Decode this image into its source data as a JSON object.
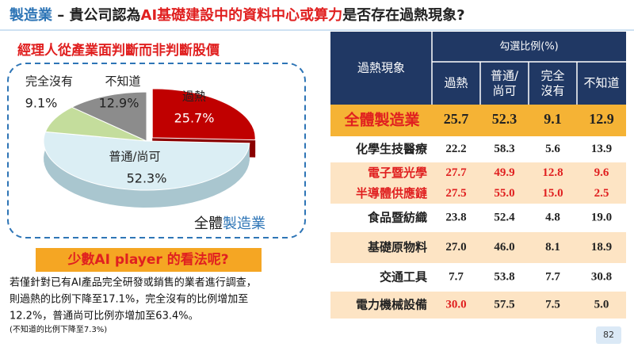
{
  "header": {
    "title_parts": [
      {
        "text": "製造業",
        "color": "#2e75b6"
      },
      {
        "text": " – 貴公司認為",
        "color": "#222222"
      },
      {
        "text": "AI基礎建設中的資料中心或算力",
        "color": "#e02020"
      },
      {
        "text": "是否存在過熱現象?",
        "color": "#222222"
      }
    ]
  },
  "subtitle": "經理人從產業面判斷而非判斷股價",
  "chart_data": {
    "type": "pie",
    "label_parts": [
      {
        "text": "全體",
        "color": "#222222"
      },
      {
        "text": "製造業",
        "color": "#2e75b6"
      }
    ],
    "categories": [
      "過熱",
      "普通/尚可",
      "完全沒有",
      "不知道"
    ],
    "values": [
      25.7,
      52.3,
      9.1,
      12.9
    ],
    "value_labels": [
      "25.7%",
      "52.3%",
      "9.1%",
      "12.9%"
    ],
    "colors": [
      "#c00000",
      "#dbeef4",
      "#c4dd9c",
      "#8c8c8c"
    ],
    "side_colors": [
      "#8a0000",
      "#a9c6cf",
      "#94ad6c",
      "#5f5f5f"
    ],
    "explode": [
      true,
      false,
      false,
      false
    ]
  },
  "callout": "少數AI player 的看法呢?",
  "note": {
    "lines": [
      "若僅針對已有AI產品完全研發或銷售的業者進行調查，",
      "則過熱的比例下降至17.1%，完全沒有的比例增加至",
      "12.2%，普通尚可比例亦增加至63.4%。"
    ],
    "small": "(不知道的比例下降至7.3%)"
  },
  "table": {
    "corner": "過熱現象",
    "group_header": "勾選比例(%)",
    "columns": [
      "過熱",
      "普通/\n尚可",
      "完全\n沒有",
      "不知道"
    ],
    "rows": [
      {
        "label": "全體製造業",
        "values": [
          "25.7",
          "52.3",
          "9.1",
          "12.9"
        ],
        "label_color": "#e02020",
        "value_colors": [
          "#222",
          "#222",
          "#222",
          "#222"
        ],
        "bg": "#f5b335"
      },
      {
        "label": "化學生技醫療",
        "values": [
          "22.2",
          "58.3",
          "5.6",
          "13.9"
        ],
        "label_color": "#222",
        "value_colors": [
          "#222",
          "#222",
          "#222",
          "#222"
        ],
        "bg": "#ffffff"
      },
      {
        "label": "電子暨光學",
        "values": [
          "27.7",
          "49.9",
          "12.8",
          "9.6"
        ],
        "label_color": "#e02020",
        "value_colors": [
          "#e02020",
          "#e02020",
          "#e02020",
          "#e02020"
        ],
        "bg": "#fde4c4"
      },
      {
        "label": "半導體供應鏈",
        "values": [
          "27.5",
          "55.0",
          "15.0",
          "2.5"
        ],
        "label_color": "#e02020",
        "value_colors": [
          "#e02020",
          "#e02020",
          "#e02020",
          "#e02020"
        ],
        "bg": "#fde4c4"
      },
      {
        "label": "食品暨紡織",
        "values": [
          "23.8",
          "52.4",
          "4.8",
          "19.0"
        ],
        "label_color": "#222",
        "value_colors": [
          "#222",
          "#222",
          "#222",
          "#222"
        ],
        "bg": "#ffffff"
      },
      {
        "label": "基礎原物料",
        "values": [
          "27.0",
          "46.0",
          "8.1",
          "18.9"
        ],
        "label_color": "#222",
        "value_colors": [
          "#222",
          "#222",
          "#222",
          "#222"
        ],
        "bg": "#fde4c4"
      },
      {
        "label": "交通工具",
        "values": [
          "7.7",
          "53.8",
          "7.7",
          "30.8"
        ],
        "label_color": "#222",
        "value_colors": [
          "#222",
          "#222",
          "#222",
          "#222"
        ],
        "bg": "#ffffff"
      },
      {
        "label": "電力機械設備",
        "values": [
          "30.0",
          "57.5",
          "7.5",
          "5.0"
        ],
        "label_color": "#222",
        "value_colors": [
          "#e02020",
          "#222",
          "#222",
          "#222"
        ],
        "bg": "#fde4c4"
      }
    ]
  },
  "page_number": "82"
}
